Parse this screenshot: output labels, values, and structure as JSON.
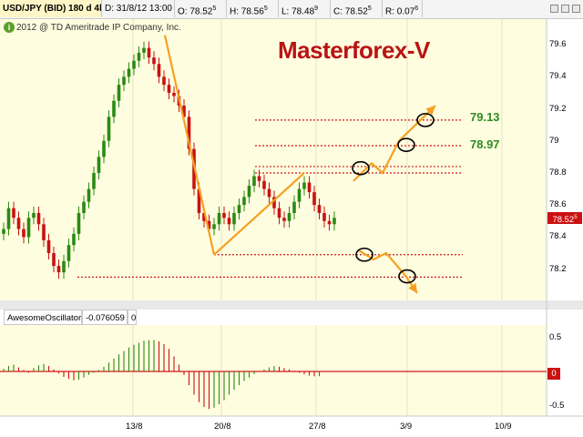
{
  "header": {
    "symbol": "USD/JPY (BID) 180 d 4h",
    "date_label": "D: 31/8/12 13:00",
    "open_label": "O: 78.52",
    "open_sup": "5",
    "high_label": "H: 78.56",
    "high_sup": "5",
    "low_label": "L: 78.48",
    "low_sup": "9",
    "close_label": "C: 78.52",
    "close_sup": "5",
    "range_label": "R: 0.07",
    "range_sup": "6"
  },
  "copyright": "2012 @ TD Ameritrade IP Company, Inc.",
  "copyright_icon": "i",
  "brand_title": "Masterforex-V",
  "targets": {
    "upper": "79.13",
    "lower": "78.97"
  },
  "price_tag": {
    "value": "78.52",
    "sup": "5"
  },
  "oscillator": {
    "name": "AwesomeOscillator",
    "value": "-0.076059",
    "param": "0",
    "zero_tag": "0",
    "y_ticks": [
      "0.5",
      "0",
      "-0.5"
    ]
  },
  "colors": {
    "background": "#fffde0",
    "bull": "#2a8a12",
    "bear": "#c81212",
    "projection": "#f5a020",
    "level": "#d01818"
  },
  "chart_data": [
    {
      "type": "candlestick",
      "title": "USD/JPY (BID) 180 d 4h",
      "y_ticks": [
        "78.2",
        "78.4",
        "78.6",
        "78.8",
        "79",
        "79.2",
        "79.4",
        "79.6"
      ],
      "x_ticks": [
        "13/8",
        "20/8",
        "27/8",
        "3/9",
        "10/9"
      ],
      "ylim": [
        78.05,
        79.72
      ],
      "closes": [
        78.45,
        78.58,
        78.52,
        78.45,
        78.4,
        78.52,
        78.55,
        78.48,
        78.38,
        78.3,
        78.22,
        78.18,
        78.25,
        78.35,
        78.42,
        78.55,
        78.62,
        78.7,
        78.8,
        78.9,
        79.0,
        79.15,
        79.25,
        79.35,
        79.4,
        79.45,
        79.5,
        79.55,
        79.58,
        79.52,
        79.48,
        79.4,
        79.35,
        79.3,
        79.28,
        79.22,
        79.15,
        78.95,
        78.7,
        78.55,
        78.5,
        78.45,
        78.48,
        78.55,
        78.52,
        78.48,
        78.55,
        78.6,
        78.65,
        78.72,
        78.78,
        78.75,
        78.7,
        78.65,
        78.58,
        78.52,
        78.5,
        78.55,
        78.62,
        78.7,
        78.74,
        78.68,
        78.6,
        78.55,
        78.5,
        78.48,
        78.52
      ],
      "trend_lines": [
        {
          "name": "down-leg",
          "points": [
            [
              "13/8 +4h",
              79.66
            ],
            [
              "20/8 -4h",
              78.29
            ]
          ]
        },
        {
          "name": "up-leg",
          "points": [
            [
              "20/8 -4h",
              78.29
            ],
            [
              "27/8 -8h",
              78.8
            ]
          ]
        }
      ],
      "levels": [
        79.13,
        78.97,
        78.84,
        78.8,
        78.29,
        78.15
      ],
      "projections": {
        "up": [
          [
            78.75,
            78.86
          ],
          [
            78.8,
            79.0
          ],
          [
            79.22
          ]
        ],
        "down": [
          [
            78.32,
            78.26
          ],
          [
            78.3,
            78.16
          ],
          [
            78.05
          ]
        ]
      }
    },
    {
      "type": "bar",
      "title": "AwesomeOscillator",
      "y_ticks": [
        "0.5",
        "0",
        "-0.5"
      ],
      "ylim": [
        -0.6,
        0.6
      ],
      "values": [
        0.04,
        0.08,
        0.1,
        0.06,
        0.02,
        -0.02,
        0.05,
        0.09,
        0.11,
        0.08,
        0.03,
        -0.03,
        -0.08,
        -0.11,
        -0.13,
        -0.12,
        -0.09,
        -0.05,
        -0.02,
        0.02,
        0.07,
        0.13,
        0.19,
        0.25,
        0.3,
        0.35,
        0.39,
        0.42,
        0.45,
        0.46,
        0.46,
        0.44,
        0.4,
        0.33,
        0.22,
        0.1,
        -0.05,
        -0.2,
        -0.34,
        -0.45,
        -0.52,
        -0.55,
        -0.53,
        -0.48,
        -0.42,
        -0.34,
        -0.27,
        -0.2,
        -0.14,
        -0.09,
        -0.04,
        0.0,
        0.03,
        0.06,
        0.08,
        0.07,
        0.05,
        0.03,
        0.01,
        -0.02,
        -0.04,
        -0.06,
        -0.07,
        -0.07
      ]
    }
  ]
}
